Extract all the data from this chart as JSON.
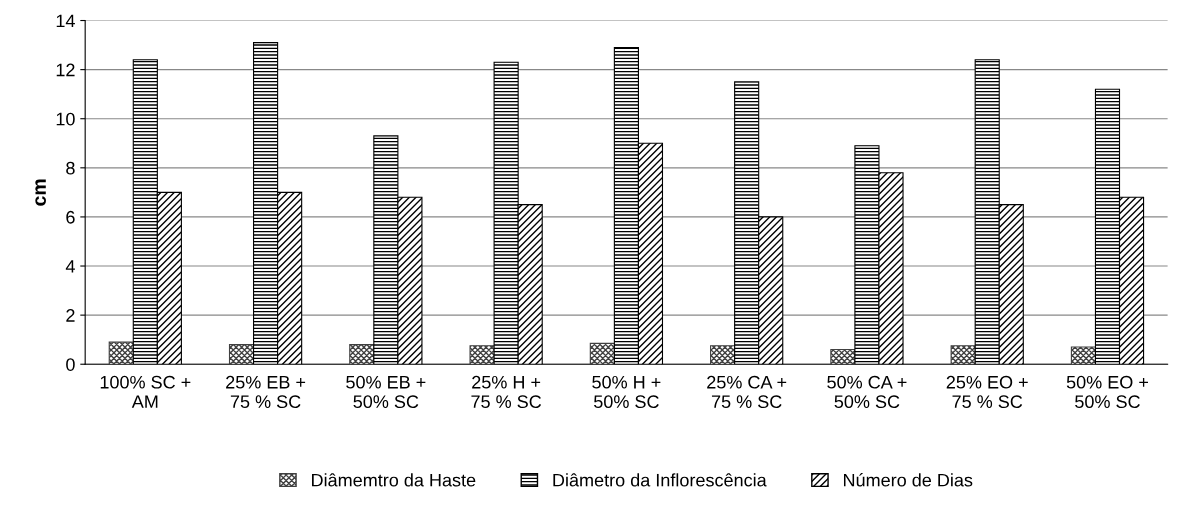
{
  "chart_data": {
    "type": "bar",
    "ylabel": "cm",
    "categories": [
      "100% SC +\nAM",
      "25% EB +\n75 % SC",
      "50% EB +\n50% SC",
      "25% H +\n75 % SC",
      "50% H +\n50% SC",
      "25% CA +\n75 % SC",
      "50% CA +\n50% SC",
      "25% EO +\n75 % SC",
      "50% EO +\n50% SC"
    ],
    "series": [
      {
        "name": "Diâmemtro da Haste",
        "color": "#404040",
        "values": [
          0.9,
          0.8,
          0.8,
          0.75,
          0.85,
          0.75,
          0.6,
          0.75,
          0.7
        ]
      },
      {
        "name": "Diâmetro da Inflorescência",
        "color": "#000000",
        "values": [
          12.4,
          13.1,
          9.3,
          12.3,
          12.9,
          11.5,
          8.9,
          12.4,
          11.2
        ]
      },
      {
        "name": "Número de Dias",
        "color": "#000000",
        "values": [
          7.0,
          7.0,
          6.8,
          6.5,
          9.0,
          6.0,
          7.8,
          6.5,
          6.8
        ]
      }
    ],
    "ylim": [
      0,
      14
    ],
    "yticks": [
      0,
      2,
      4,
      6,
      8,
      10,
      12,
      14
    ],
    "grid": "y",
    "legend": "bottom"
  }
}
